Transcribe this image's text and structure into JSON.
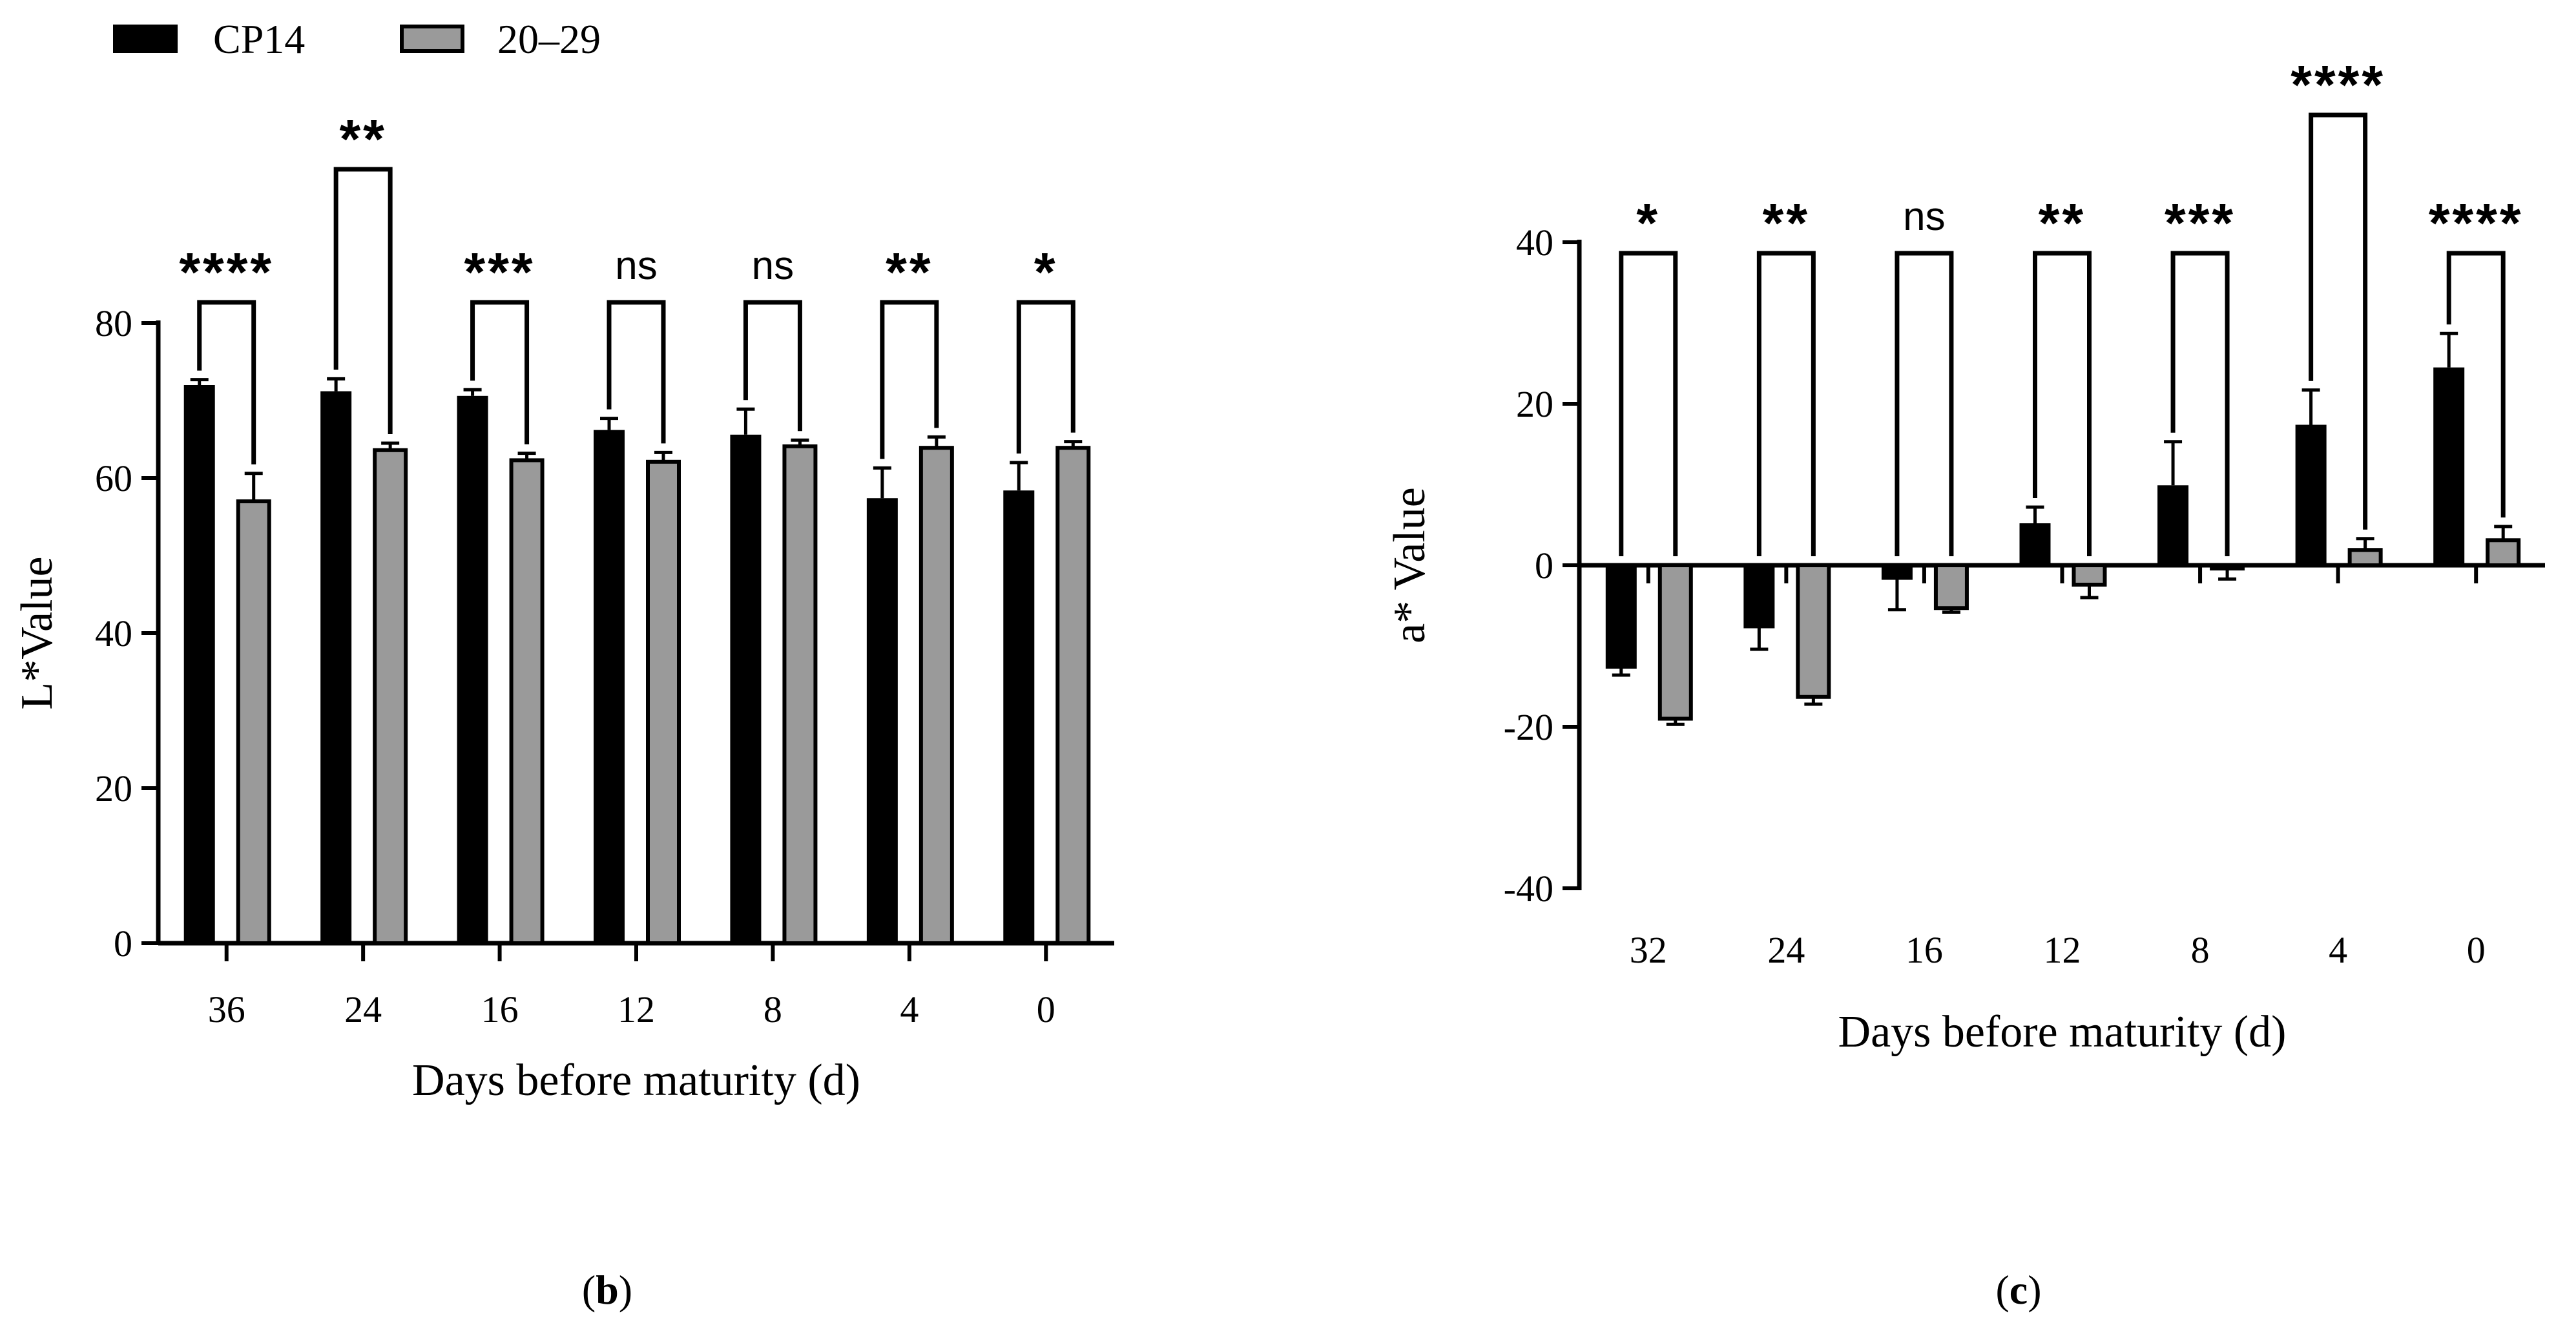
{
  "legend": {
    "items": [
      {
        "label": "CP14",
        "color": "#000000"
      },
      {
        "label": "20–29",
        "color": "#9a9a9a"
      }
    ]
  },
  "colors": {
    "cp14": "#000000",
    "line2029": "#9a9a9a",
    "axis": "#000000"
  },
  "chart_data": [
    {
      "type": "bar",
      "panel_label": "b",
      "xlabel": "Days before maturity (d)",
      "ylabel": "L*Value",
      "ylim": [
        0,
        80
      ],
      "yticks": [
        0,
        20,
        40,
        60,
        80
      ],
      "categories": [
        "36",
        "24",
        "16",
        "12",
        "8",
        "4",
        "0"
      ],
      "series": [
        {
          "name": "CP14",
          "values": [
            72,
            71.2,
            70.6,
            66.2,
            65.6,
            57.4,
            58.4
          ],
          "errors": [
            0.7,
            1.6,
            0.8,
            1.5,
            3.3,
            3.9,
            3.6
          ]
        },
        {
          "name": "20–29",
          "values": [
            57,
            63.6,
            62.3,
            62.1,
            64.1,
            63.9,
            63.9
          ],
          "errors": [
            3.6,
            0.9,
            0.9,
            1.2,
            0.8,
            1.4,
            0.8
          ]
        }
      ],
      "significance": [
        "****",
        "**",
        "***",
        "ns",
        "ns",
        "**",
        "*"
      ]
    },
    {
      "type": "bar",
      "panel_label": "c",
      "xlabel": "Days before maturity (d)",
      "ylabel": "a* Value",
      "ylim": [
        -40,
        40
      ],
      "yticks": [
        -40,
        -20,
        0,
        20,
        40
      ],
      "categories": [
        "32",
        "24",
        "16",
        "12",
        "8",
        "4",
        "0"
      ],
      "series": [
        {
          "name": "CP14",
          "values": [
            -12.8,
            -7.8,
            -1.8,
            5.2,
            9.9,
            17.4,
            24.5
          ],
          "errors": [
            0.8,
            2.6,
            3.7,
            2.0,
            5.4,
            4.3,
            4.2
          ]
        },
        {
          "name": "20–29",
          "values": [
            -19,
            -16.3,
            -5.3,
            -2.4,
            -0.4,
            1.9,
            3.1
          ],
          "errors": [
            0.7,
            0.9,
            0.5,
            1.6,
            1.3,
            1.4,
            1.7
          ]
        }
      ],
      "significance": [
        "*",
        "**",
        "ns",
        "**",
        "***",
        "****",
        "****"
      ]
    }
  ]
}
